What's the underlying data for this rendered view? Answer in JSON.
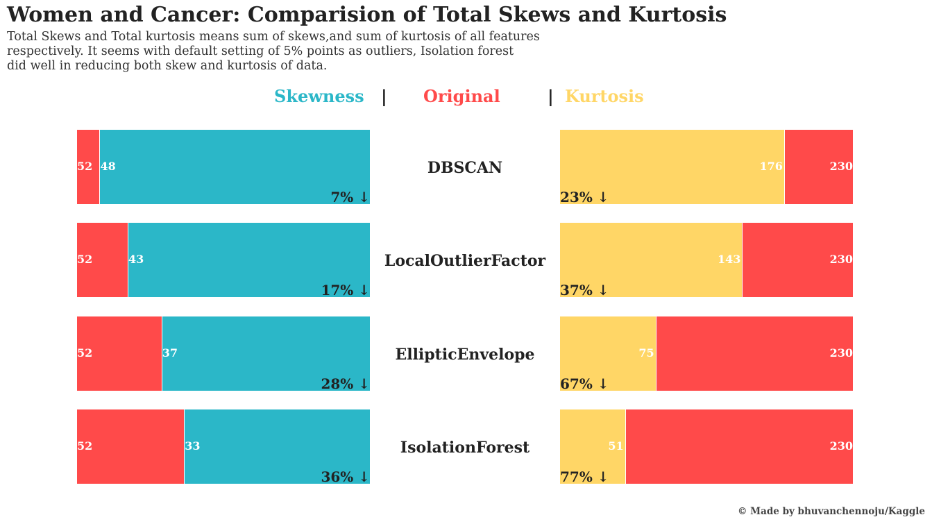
{
  "title": "Women and Cancer: Comparision of Total Skews and Kurtosis",
  "subtitle_lines": [
    "Total Skews and Total kurtosis means sum of skews,and sum of kurtosis of all features",
    "respectively. It seems with default setting of 5% points as outliers, Isolation forest",
    "did well in reducing both skew and kurtosis of data."
  ],
  "legend": {
    "skewness": "Skewness",
    "original": "Original",
    "kurtosis": "Kurtosis",
    "separator": "|"
  },
  "credit": "© Made by bhuvanchennoju/Kaggle",
  "colors": {
    "skewness": "#2bb7c8",
    "original": "#ff4a4a",
    "kurtosis": "#ffd666",
    "text": "#222222"
  },
  "chart_data": {
    "type": "bar",
    "orientation": "horizontal",
    "categories": [
      "DBSCAN",
      "LocalOutlierFactor",
      "EllipticEnvelope",
      "IsolationForest"
    ],
    "skewness": {
      "original": 52,
      "values": [
        48,
        43,
        37,
        33
      ],
      "reduction_labels": [
        "7% ↓",
        "17% ↓",
        "28% ↓",
        "36% ↓"
      ]
    },
    "kurtosis": {
      "original": 230,
      "values": [
        176,
        143,
        75,
        51
      ],
      "reduction_labels": [
        "23% ↓",
        "37% ↓",
        "67% ↓",
        "77% ↓"
      ]
    },
    "legend_placement": "top-center",
    "grid": false
  }
}
